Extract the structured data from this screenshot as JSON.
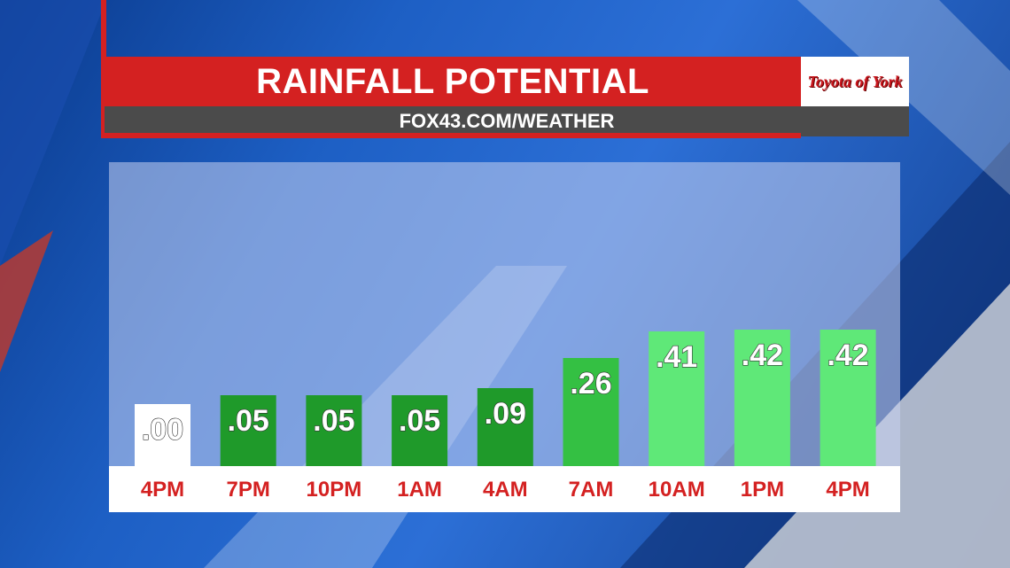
{
  "header": {
    "title": "RAINFALL POTENTIAL",
    "subtitle": "FOX43.COM/WEATHER",
    "sponsor_logo": "Toyota of York"
  },
  "colors": {
    "header_red": "#d42121",
    "header_gray": "#4b4b4b",
    "tick_red": "#d42121",
    "bar_zero": "#ffffff",
    "bar_dark_green": "#1f9a2a",
    "bar_mid_green": "#34c043",
    "bar_light_green": "#5fe878"
  },
  "chart_data": {
    "type": "bar",
    "title": "RAINFALL POTENTIAL",
    "xlabel": "",
    "ylabel": "",
    "categories": [
      "4PM",
      "7PM",
      "10PM",
      "1AM",
      "4AM",
      "7AM",
      "10AM",
      "1PM",
      "4PM"
    ],
    "values": [
      0.0,
      0.05,
      0.05,
      0.05,
      0.09,
      0.26,
      0.41,
      0.42,
      0.42
    ],
    "value_labels": [
      ".00",
      ".05",
      ".05",
      ".05",
      ".09",
      ".26",
      ".41",
      ".42",
      ".42"
    ],
    "grid": false,
    "legend": "none"
  }
}
